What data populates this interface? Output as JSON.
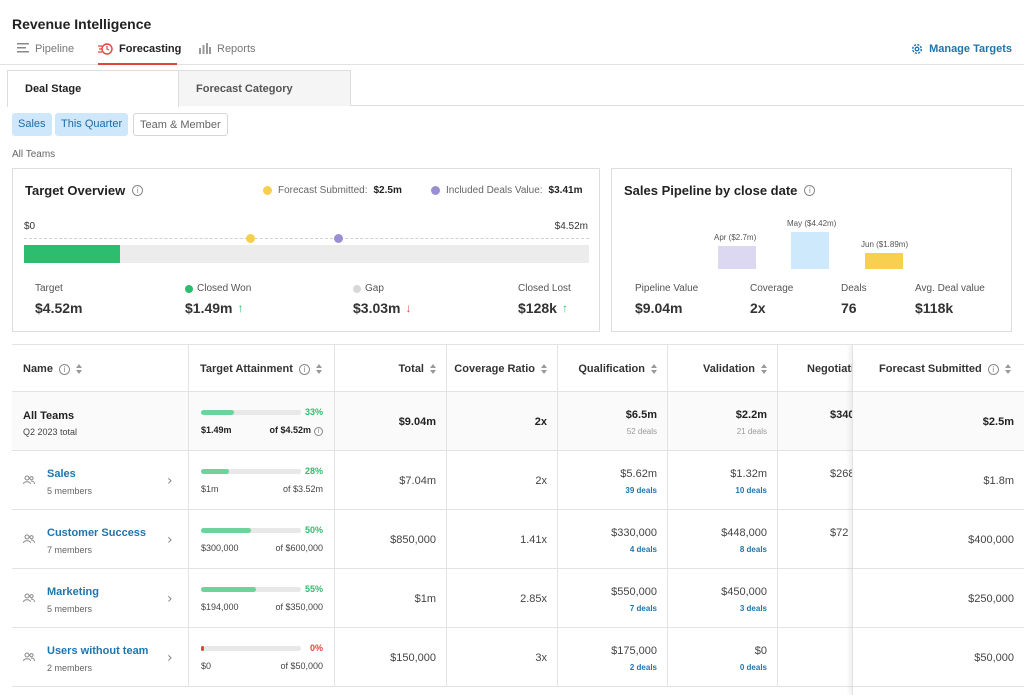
{
  "app": {
    "title": "Revenue Intelligence",
    "nav": [
      {
        "label": "Pipeline",
        "icon": "list-icon"
      },
      {
        "label": "Forecasting",
        "icon": "forecast-clock-icon",
        "active": true
      },
      {
        "label": "Reports",
        "icon": "bar-chart-icon"
      }
    ],
    "manage_targets": "Manage Targets"
  },
  "subtabs": [
    {
      "label": "Deal Stage",
      "active": true
    },
    {
      "label": "Forecast Category",
      "active": false
    }
  ],
  "filters": [
    {
      "label": "Sales",
      "active": true
    },
    {
      "label": "This Quarter",
      "active": true
    },
    {
      "label": "Team & Member",
      "active": false
    }
  ],
  "scope_label": "All Teams",
  "target_overview": {
    "title": "Target Overview",
    "legend": [
      {
        "label": "Forecast Submitted:",
        "value": "$2.5m",
        "color": "#f5cf4d"
      },
      {
        "label": "Included Deals Value:",
        "value": "$3.41m",
        "color": "#9b8fd3"
      }
    ],
    "scale_min": "$0",
    "scale_max": "$4.52m",
    "progress_fraction": 0.17,
    "forecast_fraction": 0.4,
    "included_fraction": 0.556,
    "stats": [
      {
        "label": "Target",
        "value": "$4.52m"
      },
      {
        "label": "Closed Won",
        "value": "$1.49m",
        "trend": "up",
        "dot": "#2dbd6e"
      },
      {
        "label": "Gap",
        "value": "$3.03m",
        "trend": "down",
        "dot": "#d8d8d8"
      },
      {
        "label": "Closed Lost",
        "value": "$128k",
        "trend": "up"
      }
    ]
  },
  "sales_pipeline": {
    "title": "Sales Pipeline by close date",
    "bars": [
      {
        "label": "Apr ($2.7m)",
        "value": 2.7,
        "color": "#dcd8f2"
      },
      {
        "label": "May ($4.42m)",
        "value": 4.42,
        "color": "#cde9fb"
      },
      {
        "label": "Jun ($1.89m)",
        "value": 1.89,
        "color": "#f7d04f"
      }
    ],
    "stats": [
      {
        "label": "Pipeline Value",
        "value": "$9.04m"
      },
      {
        "label": "Coverage",
        "value": "2x"
      },
      {
        "label": "Deals",
        "value": "76"
      },
      {
        "label": "Avg. Deal value",
        "value": "$118k"
      }
    ]
  },
  "table": {
    "columns": [
      "Name",
      "Target Attainment",
      "Total",
      "Coverage Ratio",
      "Qualification",
      "Validation",
      "Negotiati",
      "Forecast Submitted"
    ],
    "summary": {
      "name": "All Teams",
      "sub": "Q2 2023 total",
      "pct": "33%",
      "fraction": 0.33,
      "lo": "$1.49m",
      "hi": "of $4.52m",
      "total": "$9.04m",
      "coverage": "2x",
      "qual": "$6.5m",
      "qual_deals": "52 deals",
      "valid": "$2.2m",
      "valid_deals": "21 deals",
      "nego": "$340",
      "forecast": "$2.5m"
    },
    "rows": [
      {
        "name": "Sales",
        "sub": "5 members",
        "pct": "28%",
        "fraction": 0.28,
        "pct_color": "#2dbd6e",
        "lo": "$1m",
        "hi": "of $3.52m",
        "total": "$7.04m",
        "coverage": "2x",
        "qual": "$5.62m",
        "qual_deals": "39 deals",
        "valid": "$1.32m",
        "valid_deals": "10 deals",
        "nego": "$268",
        "forecast": "$1.8m"
      },
      {
        "name": "Customer Success",
        "sub": "7 members",
        "pct": "50%",
        "fraction": 0.5,
        "pct_color": "#2dbd6e",
        "lo": "$300,000",
        "hi": "of $600,000",
        "total": "$850,000",
        "coverage": "1.41x",
        "qual": "$330,000",
        "qual_deals": "4 deals",
        "valid": "$448,000",
        "valid_deals": "8 deals",
        "nego": "$72",
        "forecast": "$400,000"
      },
      {
        "name": "Marketing",
        "sub": "5 members",
        "pct": "55%",
        "fraction": 0.55,
        "pct_color": "#2dbd6e",
        "lo": "$194,000",
        "hi": "of $350,000",
        "total": "$1m",
        "coverage": "2.85x",
        "qual": "$550,000",
        "qual_deals": "7 deals",
        "valid": "$450,000",
        "valid_deals": "3 deals",
        "nego": "",
        "forecast": "$250,000"
      },
      {
        "name": "Users without team",
        "sub": "2 members",
        "pct": "0%",
        "fraction": 0.0,
        "pct_color": "#e0453b",
        "lo": "$0",
        "hi": "of $50,000",
        "total": "$150,000",
        "coverage": "3x",
        "qual": "$175,000",
        "qual_deals": "2 deals",
        "valid": "$0",
        "valid_deals": "0 deals",
        "nego": "",
        "forecast": "$50,000"
      }
    ]
  }
}
